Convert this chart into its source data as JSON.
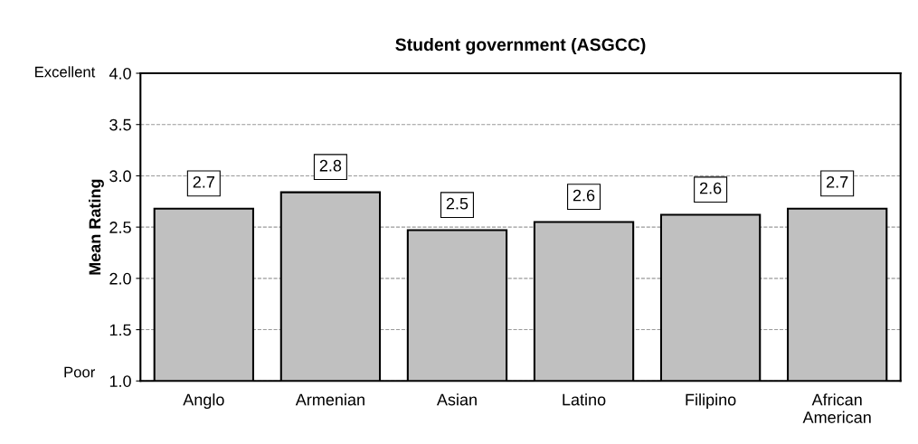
{
  "chart_data": {
    "type": "bar",
    "title": "Student government (ASGCC)",
    "ylabel": "Mean Rating",
    "categories": [
      "Anglo",
      "Armenian",
      "Asian",
      "Latino",
      "Filipino",
      "African\nAmerican"
    ],
    "values": [
      2.68,
      2.84,
      2.47,
      2.55,
      2.62,
      2.68
    ],
    "value_labels": [
      "2.7",
      "2.8",
      "2.5",
      "2.6",
      "2.6",
      "2.7"
    ],
    "color": "#c0c0c0",
    "ylim": [
      1.0,
      4.0
    ],
    "yticks": [
      {
        "value": 1.0,
        "label": "1.0"
      },
      {
        "value": 1.5,
        "label": "1.5"
      },
      {
        "value": 2.0,
        "label": "2.0"
      },
      {
        "value": 2.5,
        "label": "2.5"
      },
      {
        "value": 3.0,
        "label": "3.0"
      },
      {
        "value": 3.5,
        "label": "3.5"
      },
      {
        "value": 4.0,
        "label": "4.0"
      }
    ],
    "grid": "y",
    "annotations": [
      "Poor",
      "Excellent"
    ]
  }
}
